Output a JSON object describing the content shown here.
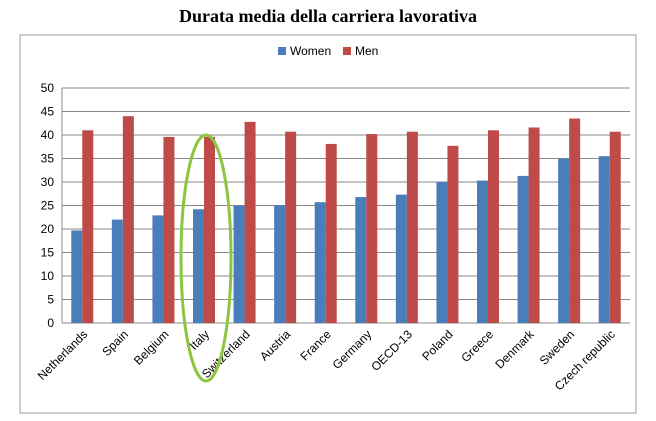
{
  "chart_data": {
    "type": "bar",
    "title": "Durata media della carriera lavorativa",
    "categories": [
      "Netherlands",
      "Spain",
      "Belgium",
      "Italy",
      "Switzerland",
      "Austria",
      "France",
      "Germany",
      "OECD-13",
      "Poland",
      "Greece",
      "Denmark",
      "Sweden",
      "Czech republic"
    ],
    "series": [
      {
        "name": "Women",
        "color": "#4a7ebb",
        "values": [
          19.7,
          22.0,
          22.9,
          24.2,
          25.0,
          25.1,
          25.7,
          26.8,
          27.3,
          30.0,
          30.3,
          31.3,
          35.0,
          35.5
        ]
      },
      {
        "name": "Men",
        "color": "#be4b48",
        "values": [
          41.0,
          44.0,
          39.6,
          39.6,
          42.8,
          40.7,
          38.1,
          40.2,
          40.7,
          37.7,
          41.0,
          41.6,
          43.5,
          40.7
        ]
      }
    ],
    "ylim": [
      0,
      50
    ],
    "yticks": [
      0,
      5,
      10,
      15,
      20,
      25,
      30,
      35,
      40,
      45,
      50
    ],
    "grid": true,
    "legend": "top-center",
    "annotation": {
      "type": "ellipse",
      "category": "Italy",
      "color": "#8cc63f"
    }
  }
}
